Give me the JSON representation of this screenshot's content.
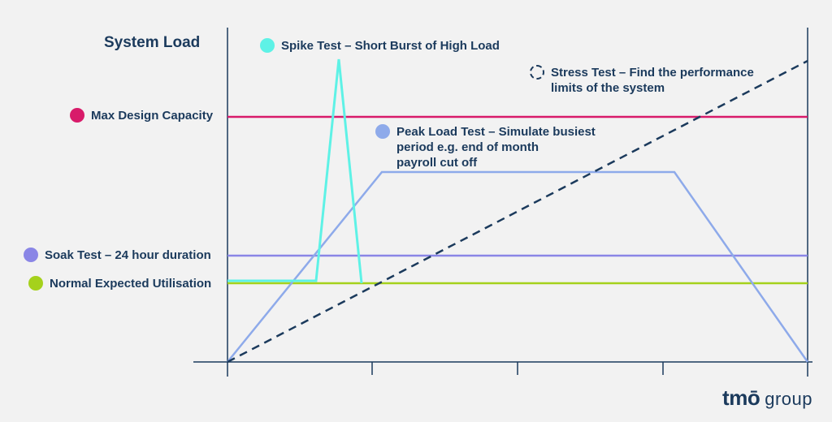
{
  "title": "System Load",
  "colors": {
    "axis": "#1b3a5c",
    "max_capacity": "#d81b6a",
    "soak": "#8a86e6",
    "normal": "#a5d11c",
    "spike": "#5ef2e6",
    "peak": "#8eaaea",
    "stress": "#1b3a5c"
  },
  "legend": {
    "spike": "Spike Test – Short Burst of High Load",
    "stress": "Stress Test – Find the performance\nlimits of the system",
    "max_capacity": "Max Design Capacity",
    "peak": "Peak Load Test – Simulate busiest\nperiod e.g. end of month\npayroll cut off",
    "soak": "Soak Test – 24 hour duration",
    "normal": "Normal Expected Utilisation"
  },
  "logo": {
    "word": "tmō",
    "suffix": "group"
  }
}
